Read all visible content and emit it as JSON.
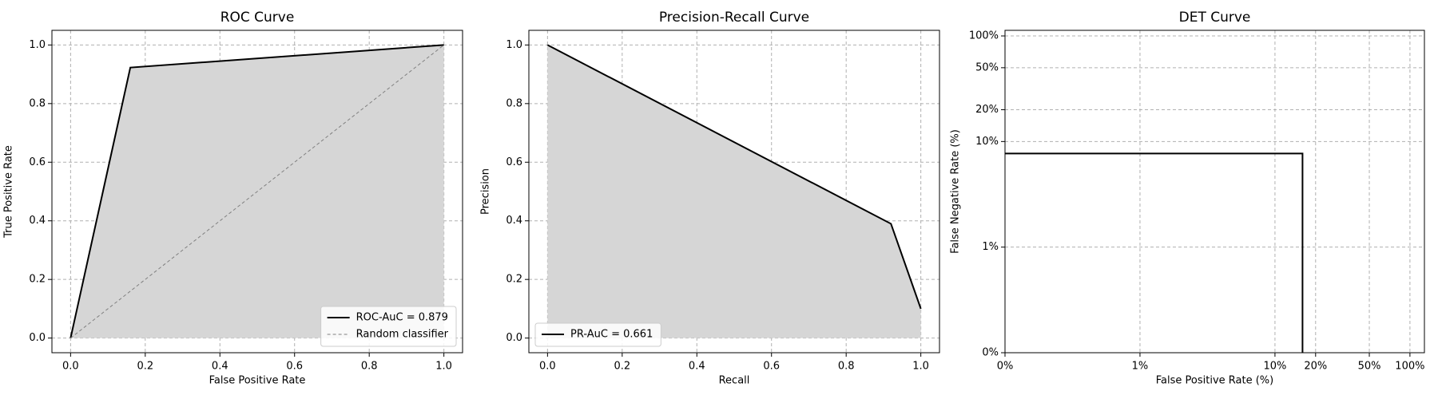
{
  "chart_data": [
    {
      "type": "line",
      "title": "ROC Curve",
      "x_label": "False Positive Rate",
      "y_label": "True Positive Rate",
      "xlim": [
        -0.05,
        1.05
      ],
      "ylim": [
        -0.05,
        1.05
      ],
      "xticks": [
        {
          "value": 0,
          "label": "0.0"
        },
        0.2,
        0.4,
        0.6,
        0.8,
        {
          "value": 1,
          "label": "1.0"
        }
      ],
      "yticks": [
        {
          "value": 0,
          "label": "0.0"
        },
        0.2,
        0.4,
        0.6,
        0.8,
        {
          "value": 1,
          "label": "1.0"
        }
      ],
      "grid": true,
      "legend": "lower right",
      "series": [
        {
          "name": "ROC-AuC = 0.879",
          "color": "#000000",
          "fill": "#d6d6d6",
          "x": [
            0,
            0.16,
            1
          ],
          "values": [
            0,
            0.923,
            1
          ]
        },
        {
          "name": "Random classifier",
          "color": "#808080",
          "dashed": true,
          "x": [
            0,
            1
          ],
          "values": [
            0,
            1
          ]
        }
      ]
    },
    {
      "type": "line",
      "title": "Precision-Recall Curve",
      "x_label": "Recall",
      "y_label": "Precision",
      "xlim": [
        -0.05,
        1.05
      ],
      "ylim": [
        -0.05,
        1.05
      ],
      "xticks": [
        {
          "value": 0,
          "label": "0.0"
        },
        0.2,
        0.4,
        0.6,
        0.8,
        {
          "value": 1,
          "label": "1.0"
        }
      ],
      "yticks": [
        {
          "value": 0,
          "label": "0.0"
        },
        0.2,
        0.4,
        0.6,
        0.8,
        {
          "value": 1,
          "label": "1.0"
        }
      ],
      "grid": true,
      "legend": "lower left",
      "series": [
        {
          "name": "PR-AuC = 0.661",
          "color": "#000000",
          "fill": "#d6d6d6",
          "x": [
            0,
            0.92,
            1
          ],
          "values": [
            1,
            0.39,
            0.1
          ]
        }
      ]
    },
    {
      "type": "line",
      "title": "DET Curve",
      "x_label": "False Positive Rate (%)",
      "y_label": "False Negative Rate (%)",
      "log_scale": true,
      "xlim": [
        0.1,
        128
      ],
      "ylim": [
        0.1,
        113
      ],
      "xticks": [
        {
          "value": 0.1,
          "label": "0%"
        },
        {
          "value": 1,
          "label": "1%"
        },
        {
          "value": 10,
          "label": "10%"
        },
        {
          "value": 20,
          "label": "20%"
        },
        {
          "value": 50,
          "label": "50%"
        },
        {
          "value": 100,
          "label": "100%"
        }
      ],
      "yticks": [
        {
          "value": 0.1,
          "label": "0%"
        },
        {
          "value": 1,
          "label": "1%"
        },
        {
          "value": 10,
          "label": "10%"
        },
        {
          "value": 20,
          "label": "20%"
        },
        {
          "value": 50,
          "label": "50%"
        },
        {
          "value": 100,
          "label": "100%"
        }
      ],
      "grid": true,
      "series": [
        {
          "color": "#000000",
          "x": [
            0.1,
            16,
            16
          ],
          "values": [
            7.7,
            7.7,
            0.1
          ]
        }
      ]
    }
  ]
}
